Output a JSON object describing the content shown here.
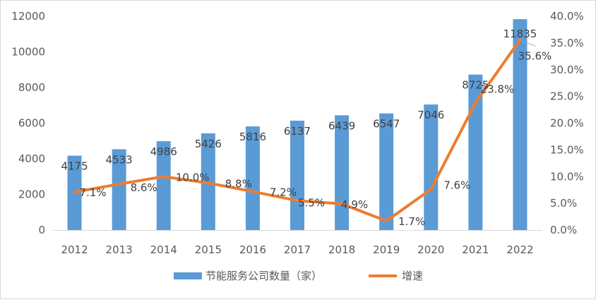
{
  "chart_data": {
    "type": "bar+line",
    "categories": [
      "2012",
      "2013",
      "2014",
      "2015",
      "2016",
      "2017",
      "2018",
      "2019",
      "2020",
      "2021",
      "2022"
    ],
    "series": [
      {
        "name": "节能服务公司数量（家）",
        "type": "bar",
        "axis": "left",
        "color": "#5B9BD5",
        "values": [
          4175,
          4533,
          4986,
          5426,
          5816,
          6137,
          6439,
          6547,
          7046,
          8725,
          11835
        ],
        "labels": [
          "4175",
          "4533",
          "4986",
          "5426",
          "5816",
          "6137",
          "6439",
          "6547",
          "7046",
          "8725",
          "11835"
        ]
      },
      {
        "name": "增速",
        "type": "line",
        "axis": "right",
        "color": "#ED7D31",
        "values": [
          7.1,
          8.6,
          10.0,
          8.8,
          7.2,
          5.5,
          4.9,
          1.7,
          7.6,
          23.8,
          35.6
        ],
        "labels": [
          "7.1%",
          "8.6%",
          "10.0%",
          "8.8%",
          "7.2%",
          "5.5%",
          "4.9%",
          "1.7%",
          "7.6%",
          "23.8%",
          "35.6%"
        ]
      }
    ],
    "y_left": {
      "range": [
        0,
        12000
      ],
      "ticks": [
        "0",
        "2000",
        "4000",
        "6000",
        "8000",
        "10000",
        "12000"
      ]
    },
    "y_right": {
      "range": [
        0,
        40
      ],
      "ticks": [
        "0.0%",
        "5.0%",
        "10.0%",
        "15.0%",
        "20.0%",
        "25.0%",
        "30.0%",
        "35.0%",
        "40.0%"
      ]
    },
    "grid": false,
    "legend_position": "bottom-center",
    "border_color": "#d9d9d9",
    "axis_color": "#d9d9d9"
  }
}
